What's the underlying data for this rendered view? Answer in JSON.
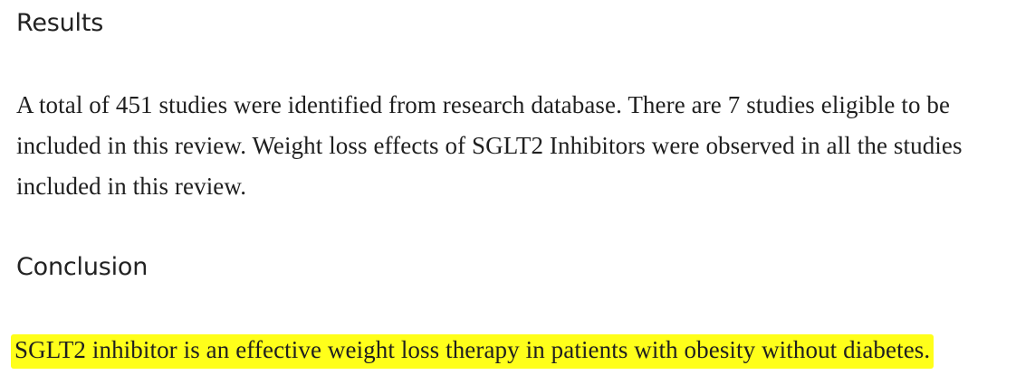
{
  "results": {
    "heading": "Results",
    "body": "A total of 451 studies were identified from research database. There are 7 studies eligible to be included in this review. Weight loss effects of SGLT2 Inhibitors were observed in all the studies included in this review."
  },
  "conclusion": {
    "heading": "Conclusion",
    "body": "SGLT2 inhibitor is an effective weight loss therapy in patients with obesity without diabetes."
  },
  "colors": {
    "highlight": "#ffff1a",
    "text": "#1f1f1f"
  }
}
